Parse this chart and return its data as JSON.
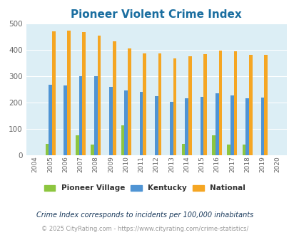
{
  "title": "Pioneer Violent Crime Index",
  "years": [
    2004,
    2005,
    2006,
    2007,
    2008,
    2009,
    2010,
    2011,
    2012,
    2013,
    2014,
    2015,
    2016,
    2017,
    2018,
    2019,
    2020
  ],
  "pioneer_village": [
    0,
    44,
    0,
    75,
    40,
    0,
    112,
    0,
    0,
    0,
    42,
    0,
    75,
    40,
    40,
    0,
    0
  ],
  "kentucky": [
    0,
    268,
    265,
    300,
    300,
    260,
    245,
    240,
    223,
    202,
    215,
    220,
    235,
    228,
    215,
    218,
    0
  ],
  "national": [
    0,
    469,
    474,
    468,
    455,
    432,
    405,
    387,
    387,
    368,
    376,
    383,
    398,
    394,
    380,
    380,
    0
  ],
  "pioneer_color": "#8dc63f",
  "kentucky_color": "#4f94d4",
  "national_color": "#f5a623",
  "bg_color": "#dceef5",
  "ylim": [
    0,
    500
  ],
  "yticks": [
    0,
    100,
    200,
    300,
    400,
    500
  ],
  "subtitle": "Crime Index corresponds to incidents per 100,000 inhabitants",
  "copyright": "© 2025 CityRating.com - https://www.cityrating.com/crime-statistics/",
  "bar_width": 0.22
}
